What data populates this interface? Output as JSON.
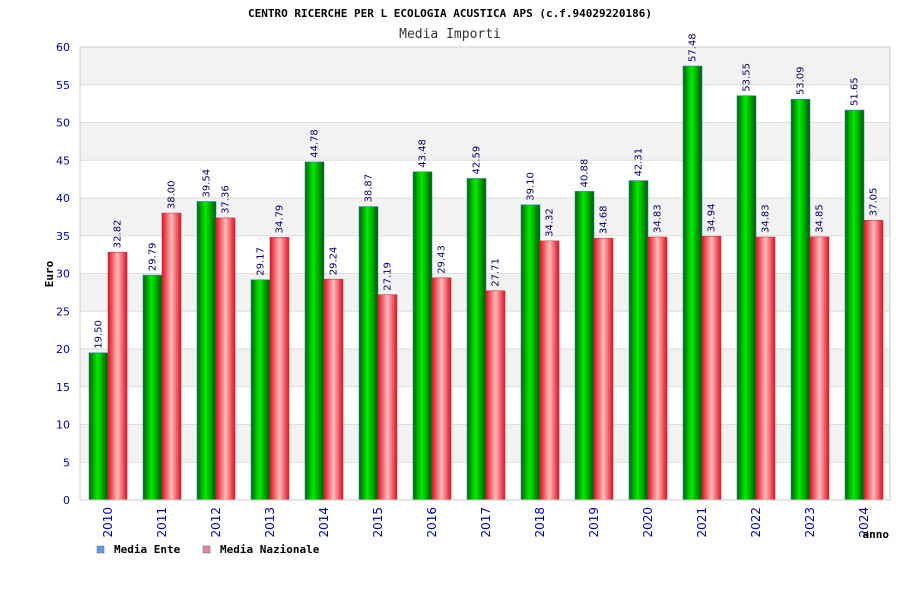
{
  "chart_data": {
    "type": "bar",
    "title": "CENTRO RICERCHE PER L ECOLOGIA ACUSTICA APS (c.f.94029220186)",
    "subtitle": "Media Importi",
    "xlabel": "anno",
    "ylabel": "Euro",
    "ylim": [
      0,
      60
    ],
    "ystep": 5,
    "categories": [
      "2010",
      "2011",
      "2012",
      "2013",
      "2014",
      "2015",
      "2016",
      "2017",
      "2018",
      "2019",
      "2020",
      "2021",
      "2022",
      "2023",
      "2024"
    ],
    "series": [
      {
        "name": "Media Ente",
        "color": "#00aa00",
        "legend_color": "#6699ee",
        "values": [
          19.5,
          29.79,
          39.54,
          29.17,
          44.78,
          38.87,
          43.48,
          42.59,
          39.1,
          40.88,
          42.31,
          57.48,
          53.55,
          53.09,
          51.65
        ]
      },
      {
        "name": "Media Nazionale",
        "color": "#ee2233",
        "legend_color": "#dd88aa",
        "values": [
          32.82,
          38.0,
          37.36,
          34.79,
          29.24,
          27.19,
          29.43,
          27.71,
          34.32,
          34.68,
          34.83,
          34.94,
          34.83,
          34.85,
          37.05
        ]
      }
    ],
    "grid": true,
    "legend_position": "bottom-left"
  }
}
